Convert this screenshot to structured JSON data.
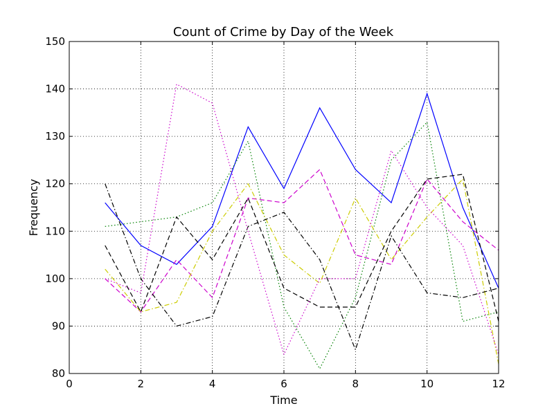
{
  "chart_data": {
    "type": "line",
    "title": "Count of Crime by Day of the Week",
    "xlabel": "Time",
    "ylabel": "Frequency",
    "xlim": [
      0,
      12
    ],
    "ylim": [
      80,
      150
    ],
    "xticks": [
      "0",
      "2",
      "4",
      "6",
      "8",
      "10",
      "12"
    ],
    "yticks": [
      "80",
      "90",
      "100",
      "110",
      "120",
      "130",
      "140",
      "150"
    ],
    "grid": true,
    "x": [
      1,
      2,
      3,
      4,
      5,
      6,
      7,
      8,
      9,
      10,
      11,
      12
    ],
    "series": [
      {
        "color": "#0000ff",
        "dash": "solid",
        "values": [
          116,
          107,
          103,
          111,
          132,
          119,
          136,
          123,
          116,
          139,
          115,
          98
        ]
      },
      {
        "color": "#008000",
        "dash": "dotted",
        "values": [
          111,
          112,
          113,
          116,
          129,
          94,
          81,
          96,
          125,
          133,
          91,
          93
        ]
      },
      {
        "color": "#cc00cc",
        "dash": "dashed",
        "values": [
          100,
          93,
          104,
          96,
          117,
          116,
          123,
          105,
          103,
          121,
          112,
          106
        ]
      },
      {
        "color": "#cccc00",
        "dash": "dashdot",
        "values": [
          102,
          93,
          95,
          110,
          120,
          105,
          99,
          117,
          104,
          113,
          121,
          82
        ]
      },
      {
        "color": "#000000",
        "dash": "dashed",
        "values": [
          107,
          93,
          113,
          104,
          117,
          98,
          94,
          94,
          110,
          121,
          122,
          91
        ]
      },
      {
        "color": "#000000",
        "dash": "dashdot",
        "values": [
          120,
          100,
          90,
          92,
          111,
          114,
          104,
          85,
          109,
          97,
          96,
          98
        ]
      },
      {
        "color": "#cc00cc",
        "dash": "dotted",
        "values": [
          100,
          97,
          141,
          137,
          110,
          84,
          100,
          100,
          127,
          115,
          107,
          84
        ]
      }
    ]
  }
}
